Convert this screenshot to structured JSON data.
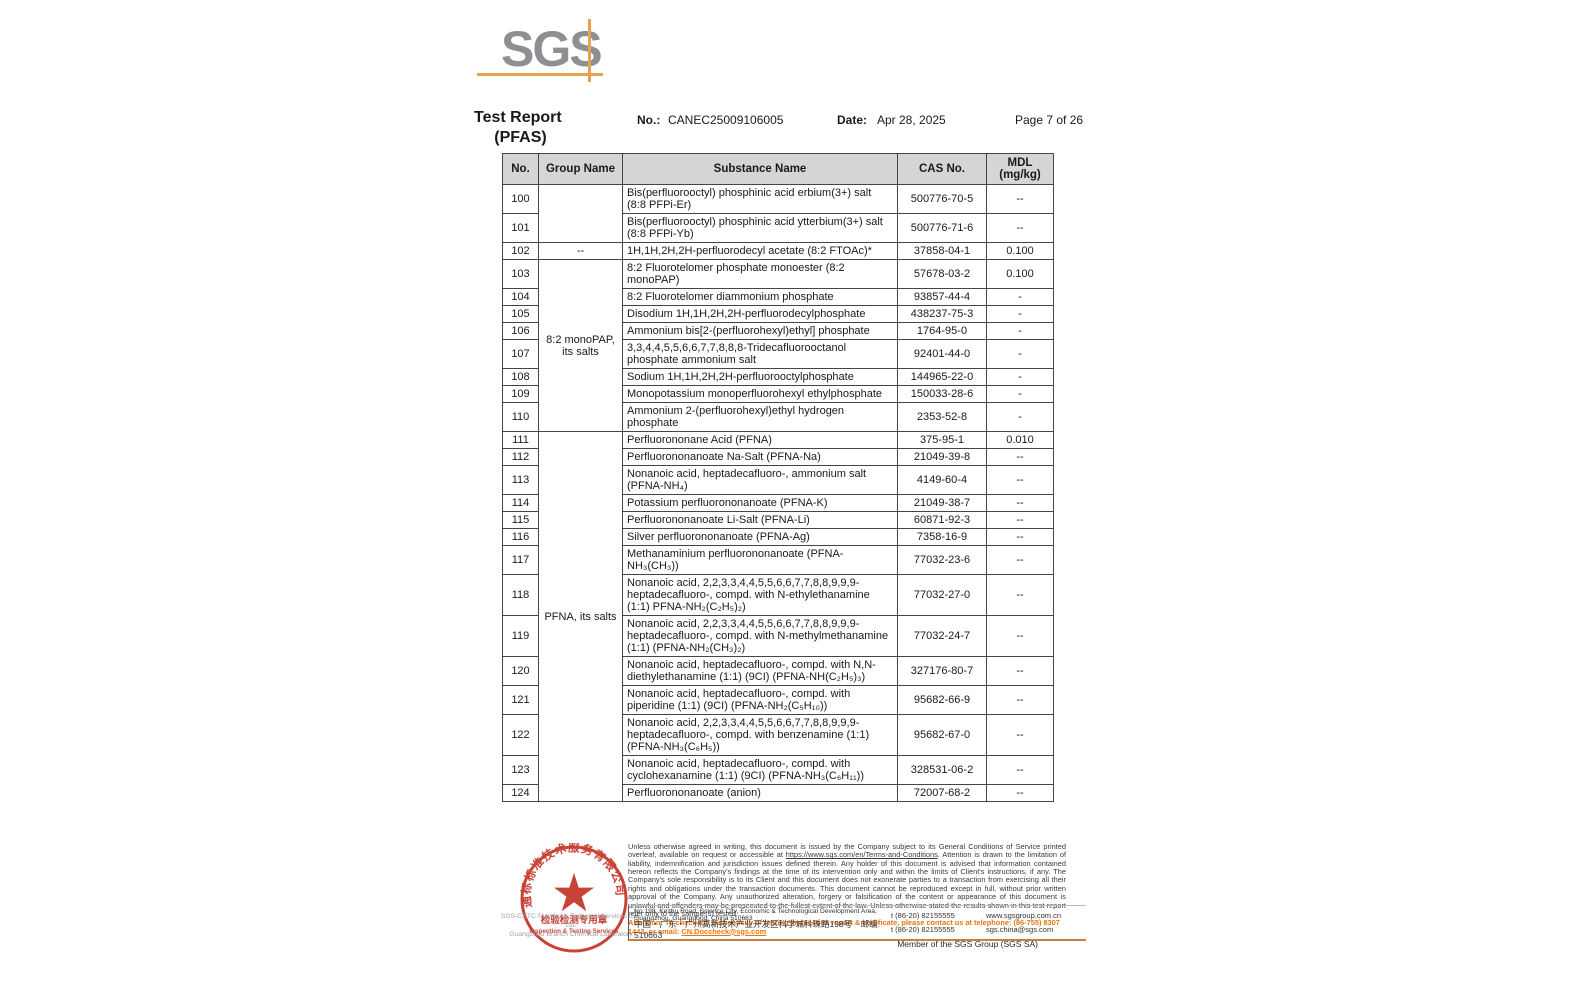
{
  "header": {
    "logo_text": "SGS",
    "title_line1": "Test Report",
    "title_line2": "(PFAS)",
    "no_label": "No.:",
    "no_value": "CANEC25009106005",
    "date_label": "Date:",
    "date_value": "Apr 28, 2025",
    "page": "Page 7 of 26"
  },
  "table": {
    "col_no": "No.",
    "col_group": "Group Name",
    "col_substance": "Substance Name",
    "col_cas": "CAS No.",
    "col_mdl": "MDL\n(mg/kg)",
    "rows": [
      {
        "no": "100",
        "group": "",
        "group_span": 2,
        "substance": "Bis(perfluorooctyl) phosphinic acid erbium(3+) salt (8:8 PFPi-Er)",
        "cas": "500776-70-5",
        "mdl": "--"
      },
      {
        "no": "101",
        "substance": "Bis(perfluorooctyl) phosphinic acid ytterbium(3+) salt (8:8 PFPi-Yb)",
        "cas": "500776-71-6",
        "mdl": "--"
      },
      {
        "no": "102",
        "group": "--",
        "group_span": 1,
        "substance": "1H,1H,2H,2H-perfluorodecyl acetate (8:2 FTOAc)*",
        "cas": "37858-04-1",
        "mdl": "0.100"
      },
      {
        "no": "103",
        "group": "8:2 monoPAP, its salts",
        "group_span": 8,
        "substance": "8:2 Fluorotelomer phosphate monoester (8:2 monoPAP)",
        "cas": "57678-03-2",
        "mdl": "0.100"
      },
      {
        "no": "104",
        "substance": "8:2 Fluorotelomer diammonium phosphate",
        "cas": "93857-44-4",
        "mdl": "-"
      },
      {
        "no": "105",
        "substance": "Disodium 1H,1H,2H,2H-perfluorodecylphosphate",
        "cas": "438237-75-3",
        "mdl": "-"
      },
      {
        "no": "106",
        "substance": "Ammonium bis[2-(perfluorohexyl)ethyl] phosphate",
        "cas": "1764-95-0",
        "mdl": "-"
      },
      {
        "no": "107",
        "substance": "3,3,4,4,5,5,6,6,7,7,8,8,8-Tridecafluorooctanol phosphate ammonium salt",
        "cas": "92401-44-0",
        "mdl": "-"
      },
      {
        "no": "108",
        "substance": "Sodium 1H,1H,2H,2H-perfluorooctylphosphate",
        "cas": "144965-22-0",
        "mdl": "-"
      },
      {
        "no": "109",
        "substance": "Monopotassium monoperfluorohexyl ethylphosphate",
        "cas": "150033-28-6",
        "mdl": "-"
      },
      {
        "no": "110",
        "substance": "Ammonium 2-(perfluorohexyl)ethyl hydrogen phosphate",
        "cas": "2353-52-8",
        "mdl": "-"
      },
      {
        "no": "111",
        "group": "PFNA, its salts",
        "group_span": 14,
        "substance": "Perfluorononane Acid (PFNA)",
        "cas": "375-95-1",
        "mdl": "0.010"
      },
      {
        "no": "112",
        "substance": "Perfluorononanoate Na-Salt (PFNA-Na)",
        "cas": "21049-39-8",
        "mdl": "--"
      },
      {
        "no": "113",
        "substance": "Nonanoic acid, heptadecafluoro-, ammonium salt (PFNA-NH₄)",
        "cas": "4149-60-4",
        "mdl": "--"
      },
      {
        "no": "114",
        "substance": "Potassium perfluorononanoate (PFNA-K)",
        "cas": "21049-38-7",
        "mdl": "--"
      },
      {
        "no": "115",
        "substance": "Perfluorononanoate Li-Salt (PFNA-Li)",
        "cas": "60871-92-3",
        "mdl": "--"
      },
      {
        "no": "116",
        "substance": "Silver perfluorononanoate (PFNA-Ag)",
        "cas": "7358-16-9",
        "mdl": "--"
      },
      {
        "no": "117",
        "substance": "Methanaminium perfluorononanoate (PFNA-NH₃(CH₃))",
        "cas": "77032-23-6",
        "mdl": "--"
      },
      {
        "no": "118",
        "substance": "Nonanoic acid, 2,2,3,3,4,4,5,5,6,6,7,7,8,8,9,9,9-heptadecafluoro-, compd. with N-ethylethanamine (1:1) PFNA-NH₂(C₂H₅)₂)",
        "cas": "77032-27-0",
        "mdl": "--"
      },
      {
        "no": "119",
        "substance": "Nonanoic acid, 2,2,3,3,4,4,5,5,6,6,7,7,8,8,9,9,9-heptadecafluoro-, compd. with N-methylmethanamine (1:1) (PFNA-NH₂(CH₃)₂)",
        "cas": "77032-24-7",
        "mdl": "--"
      },
      {
        "no": "120",
        "substance": "Nonanoic acid, heptadecafluoro-, compd. with N,N-diethylethanamine (1:1) (9CI) (PFNA-NH(C₂H₅)₃)",
        "cas": "327176-80-7",
        "mdl": "--"
      },
      {
        "no": "121",
        "substance": "Nonanoic acid, heptadecafluoro-, compd. with piperidine (1:1) (9CI) (PFNA-NH₂(C₅H₁₀))",
        "cas": "95682-66-9",
        "mdl": "--"
      },
      {
        "no": "122",
        "substance": "Nonanoic acid, 2,2,3,3,4,4,5,5,6,6,7,7,8,8,9,9,9-heptadecafluoro-, compd. with benzenamine (1:1) (PFNA-NH₃(C₆H₅))",
        "cas": "95682-67-0",
        "mdl": "--"
      },
      {
        "no": "123",
        "substance": "Nonanoic acid, heptadecafluoro-, compd. with cyclohexanamine (1:1) (9CI) (PFNA-NH₃(C₆H₁₁))",
        "cas": "328531-06-2",
        "mdl": "--"
      },
      {
        "no": "124",
        "substance": "Perfluorononanoate (anion)",
        "cas": "72007-68-2",
        "mdl": "--"
      }
    ]
  },
  "footer": {
    "disclaimer_pre": "Unless otherwise agreed in writing, this document is issued by the Company subject to its General Conditions of Service printed overleaf, available on request or accessible at ",
    "disclaimer_link": "https://www.sgs.com/en/Terms-and-Conditions",
    "disclaimer_post": ". Attention is drawn to the limitation of liability, indemnification and jurisdiction issues defined therein. Any holder of this document is advised that information contained hereon reflects the Company's findings at the time of its intervention only and within the limits of Client's instructions, if any. The Company's sole responsibility is to its Client and this document does not exonerate parties to a transaction from exercising all their rights and obligations under the transaction documents. This document cannot be reproduced except in full, without prior written approval of the Company. Any unauthorized alteration, forgery or falsification of the content or appearance of this document is unlawful and offenders may be prosecuted to the fullest extent of the law. Unless otherwise stated the results shown in this test report refer only to the sample(s) tested.",
    "attention_pre": "Attention: To check the authenticity of testing /inspection report & certificate, please contact us at telephone: (86-755) 8307 1443, or email: ",
    "attention_email": "CN.Doccheck@sgs.com",
    "lab_name_line1": "SGS-CSTC Standards Technical Services Co., Ltd.",
    "lab_name_line2": "Guangzhou Branch Chemical Laboratory",
    "address_en": "No.198, Kezhu Road, Science City, Economic & Technological Development Area, Guangzhou, Guangdong, China 510663",
    "address_cn": "中国・广东・广州高新技术产业开发区科学城科珠路198号　邮编: 510663",
    "tel_1": "t (86-20) 82155555",
    "tel_2": "t (86-20) 82155555",
    "website": "www.sgsgroup.com.cn",
    "email": "sgs.china@sgs.com",
    "member_line": "Member of the SGS Group (SGS SA)"
  },
  "stamp": {
    "ring_text": "通标标准技术服务有限公司广州分公司",
    "line1": "检验检测专用章",
    "line2": "Inspection & Testing Services",
    "color": "#c43325"
  },
  "colors": {
    "logo_gray": "#8e8f92",
    "logo_orange": "#e7a14f",
    "attention_orange": "#e87511",
    "table_header_bg": "#d5d5d5",
    "footer_rule": "#c8813c"
  }
}
